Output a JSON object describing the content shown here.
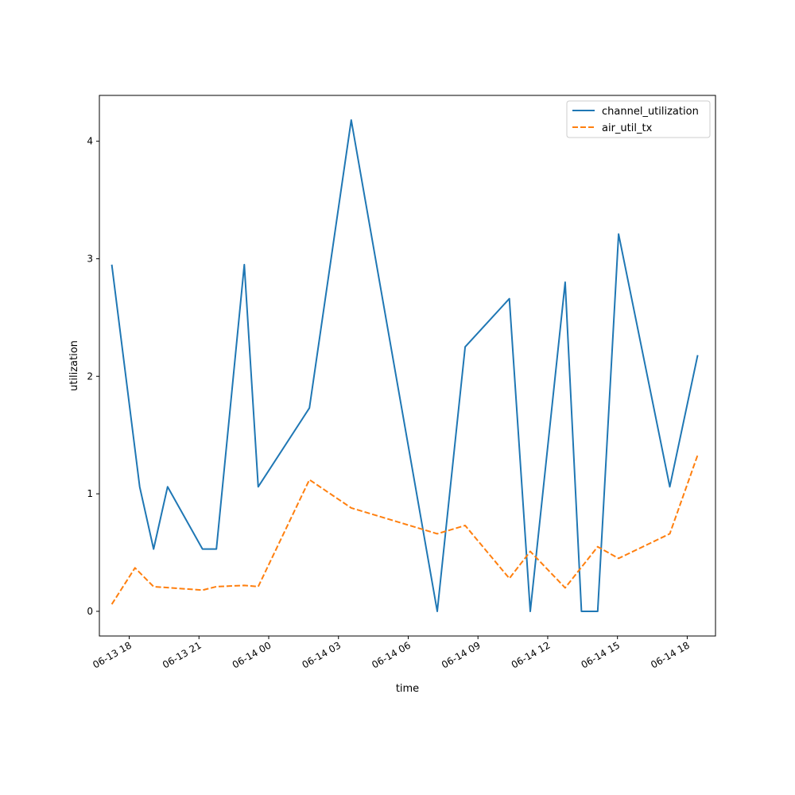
{
  "chart_data": {
    "type": "line",
    "title": "",
    "xlabel": "time",
    "ylabel": "utilization",
    "x_axis_type": "datetime",
    "xlim": [
      "2024-06-13 16:43",
      "2024-06-14 19:13"
    ],
    "ylim": [
      -0.21,
      4.39
    ],
    "x_ticks": [
      {
        "time": "2024-06-13 18:00",
        "label": "06-13 18"
      },
      {
        "time": "2024-06-13 21:00",
        "label": "06-13 21"
      },
      {
        "time": "2024-06-14 00:00",
        "label": "06-14 00"
      },
      {
        "time": "2024-06-14 03:00",
        "label": "06-14 03"
      },
      {
        "time": "2024-06-14 06:00",
        "label": "06-14 06"
      },
      {
        "time": "2024-06-14 09:00",
        "label": "06-14 09"
      },
      {
        "time": "2024-06-14 12:00",
        "label": "06-14 12"
      },
      {
        "time": "2024-06-14 15:00",
        "label": "06-14 15"
      },
      {
        "time": "2024-06-14 18:00",
        "label": "06-14 18"
      }
    ],
    "y_ticks": [
      {
        "value": 0,
        "label": "0"
      },
      {
        "value": 1,
        "label": "1"
      },
      {
        "value": 2,
        "label": "2"
      },
      {
        "value": 3,
        "label": "3"
      },
      {
        "value": 4,
        "label": "4"
      }
    ],
    "grid": false,
    "legend_position": "top-right",
    "series": [
      {
        "name": "channel_utilization",
        "color": "#1f77b4",
        "line_style": "solid",
        "points": [
          {
            "t": "2024-06-13 17:15",
            "v": 2.95
          },
          {
            "t": "2024-06-13 18:27",
            "v": 1.06
          },
          {
            "t": "2024-06-13 19:03",
            "v": 0.53
          },
          {
            "t": "2024-06-13 19:39",
            "v": 1.06
          },
          {
            "t": "2024-06-13 21:09",
            "v": 0.53
          },
          {
            "t": "2024-06-13 21:45",
            "v": 0.53
          },
          {
            "t": "2024-06-13 22:57",
            "v": 2.95
          },
          {
            "t": "2024-06-13 23:33",
            "v": 1.06
          },
          {
            "t": "2024-06-14 01:45",
            "v": 1.73
          },
          {
            "t": "2024-06-14 03:33",
            "v": 4.18
          },
          {
            "t": "2024-06-14 07:15",
            "v": 0.0
          },
          {
            "t": "2024-06-14 08:27",
            "v": 2.25
          },
          {
            "t": "2024-06-14 10:21",
            "v": 2.66
          },
          {
            "t": "2024-06-14 11:15",
            "v": 0.0
          },
          {
            "t": "2024-06-14 12:45",
            "v": 2.8
          },
          {
            "t": "2024-06-14 13:27",
            "v": 0.0
          },
          {
            "t": "2024-06-14 14:09",
            "v": 0.0
          },
          {
            "t": "2024-06-14 15:03",
            "v": 3.21
          },
          {
            "t": "2024-06-14 17:15",
            "v": 1.06
          },
          {
            "t": "2024-06-14 18:27",
            "v": 2.18
          }
        ]
      },
      {
        "name": "air_util_tx",
        "color": "#ff7f0e",
        "line_style": "dashed",
        "points": [
          {
            "t": "2024-06-13 17:15",
            "v": 0.06
          },
          {
            "t": "2024-06-13 18:15",
            "v": 0.37
          },
          {
            "t": "2024-06-13 19:03",
            "v": 0.21
          },
          {
            "t": "2024-06-13 21:09",
            "v": 0.18
          },
          {
            "t": "2024-06-13 21:45",
            "v": 0.21
          },
          {
            "t": "2024-06-13 22:57",
            "v": 0.22
          },
          {
            "t": "2024-06-13 23:33",
            "v": 0.21
          },
          {
            "t": "2024-06-14 01:45",
            "v": 1.12
          },
          {
            "t": "2024-06-14 03:33",
            "v": 0.88
          },
          {
            "t": "2024-06-14 07:15",
            "v": 0.66
          },
          {
            "t": "2024-06-14 08:27",
            "v": 0.73
          },
          {
            "t": "2024-06-14 10:21",
            "v": 0.28
          },
          {
            "t": "2024-06-14 11:15",
            "v": 0.51
          },
          {
            "t": "2024-06-14 12:45",
            "v": 0.2
          },
          {
            "t": "2024-06-14 14:09",
            "v": 0.55
          },
          {
            "t": "2024-06-14 15:03",
            "v": 0.45
          },
          {
            "t": "2024-06-14 17:15",
            "v": 0.66
          },
          {
            "t": "2024-06-14 18:27",
            "v": 1.33
          }
        ]
      }
    ]
  }
}
